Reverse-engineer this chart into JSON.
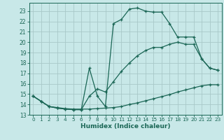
{
  "xlabel": "Humidex (Indice chaleur)",
  "bg_color": "#c8e8e8",
  "grid_color": "#a8c8c8",
  "line_color": "#1a6655",
  "xlim": [
    -0.5,
    23.5
  ],
  "ylim": [
    13,
    23.8
  ],
  "xticks": [
    0,
    1,
    2,
    3,
    4,
    5,
    6,
    7,
    8,
    9,
    10,
    11,
    12,
    13,
    14,
    15,
    16,
    17,
    18,
    19,
    20,
    21,
    22,
    23
  ],
  "yticks": [
    13,
    14,
    15,
    16,
    17,
    18,
    19,
    20,
    21,
    22,
    23
  ],
  "series1_x": [
    0,
    1,
    2,
    3,
    4,
    5,
    6,
    7,
    8,
    9,
    10,
    11,
    12,
    13,
    14,
    15,
    16,
    17,
    18,
    19,
    20,
    21,
    22,
    23
  ],
  "series1_y": [
    14.8,
    14.3,
    13.8,
    13.7,
    13.6,
    13.55,
    13.55,
    13.55,
    13.6,
    13.65,
    13.7,
    13.8,
    14.0,
    14.15,
    14.35,
    14.55,
    14.75,
    14.95,
    15.2,
    15.4,
    15.6,
    15.8,
    15.9,
    15.9
  ],
  "series2_x": [
    0,
    1,
    2,
    3,
    4,
    5,
    6,
    7,
    8,
    9,
    10,
    11,
    12,
    13,
    14,
    15,
    16,
    17,
    18,
    19,
    20,
    21,
    22,
    23
  ],
  "series2_y": [
    14.8,
    14.3,
    13.8,
    13.65,
    13.55,
    13.5,
    13.5,
    14.8,
    15.5,
    15.2,
    16.2,
    17.2,
    18.0,
    18.7,
    19.2,
    19.5,
    19.5,
    19.8,
    20.0,
    19.8,
    19.8,
    18.4,
    17.5,
    17.3
  ],
  "series3_x": [
    0,
    1,
    2,
    3,
    4,
    5,
    6,
    7,
    8,
    9,
    10,
    11,
    12,
    13,
    14,
    15,
    16,
    17,
    18,
    19,
    20,
    21,
    22,
    23
  ],
  "series3_y": [
    14.8,
    14.3,
    13.8,
    13.65,
    13.55,
    13.5,
    13.5,
    17.5,
    14.8,
    13.8,
    21.8,
    22.2,
    23.2,
    23.3,
    23.0,
    22.9,
    22.9,
    21.8,
    20.5,
    20.5,
    20.5,
    18.4,
    17.5,
    17.3
  ]
}
